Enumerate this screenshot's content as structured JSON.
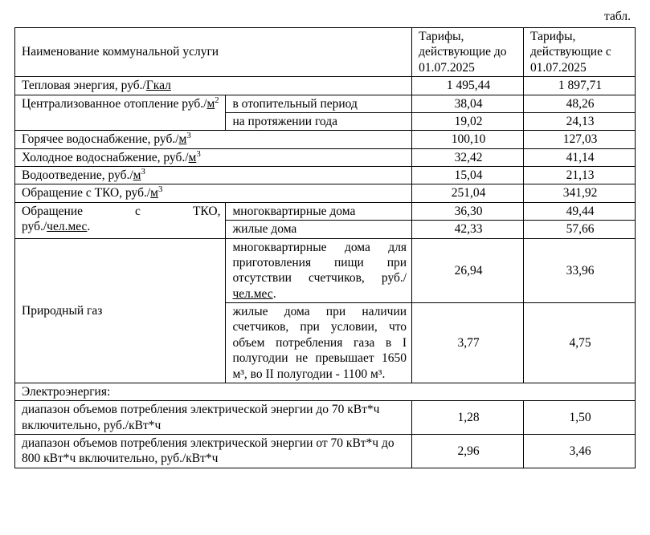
{
  "caption": "табл.",
  "header": {
    "name": "Наименование коммунальной услуги",
    "tariff_before": "Тарифы, действующие до 01.07.2025",
    "tariff_after": "Тарифы, действующие с 01.07.2025"
  },
  "r1": {
    "name_a": "Тепловая энергия, руб./",
    "name_b": "Гкал",
    "v1": "1 495,44",
    "v2": "1 897,71"
  },
  "r2": {
    "name": "Централизованное отопление руб./",
    "unit": "м",
    "sub1": "в отопительный период",
    "v1a": "38,04",
    "v2a": "48,26",
    "sub2": "на протяжении года",
    "v1b": "19,02",
    "v2b": "24,13"
  },
  "r3": {
    "name_a": "Горячее водоснабжение, руб./",
    "name_b": "м",
    "v1": "100,10",
    "v2": "127,03"
  },
  "r4": {
    "name_a": "Холодное водоснабжение, руб./",
    "name_b": "м",
    "v1": "32,42",
    "v2": "41,14"
  },
  "r5": {
    "name_a": "Водоотведение, руб./",
    "name_b": "м",
    "v1": "15,04",
    "v2": "21,13"
  },
  "r6": {
    "name_a": "Обращение с ТКО, руб./",
    "name_b": "м",
    "v1": "251,04",
    "v2": "341,92"
  },
  "r7": {
    "name_line1": "Обращение с ТКО,",
    "name_a": "руб./",
    "name_b": "чел.мес",
    "sub1": "многоквартирные дома",
    "v1a": "36,30",
    "v2a": "49,44",
    "sub2": "жилые дома",
    "v1b": "42,33",
    "v2b": "57,66"
  },
  "r8": {
    "name": "Природный газ",
    "sub1_a": "многоквартирные дома для приготовления пищи при отсутствии счетчиков, руб./",
    "sub1_b": "чел.мес",
    "v1a": "26,94",
    "v2a": "33,96",
    "sub2": "жилые дома при наличии счетчиков, при условии, что объем потребления газа в I полугодии не превышает 1650 м³, во II полугодии - 1100 м³.",
    "v1b": "3,77",
    "v2b": "4,75"
  },
  "r9": {
    "name": "Электроэнергия:"
  },
  "r10": {
    "name": "диапазон объемов потребления электрической энергии до 70 кВт*ч включительно, руб./кВт*ч",
    "v1": "1,28",
    "v2": "1,50"
  },
  "r11": {
    "name": "диапазон объемов потребления электрической энергии от 70 кВт*ч до 800 кВт*ч включительно, руб./кВт*ч",
    "v1": "2,96",
    "v2": "3,46"
  }
}
